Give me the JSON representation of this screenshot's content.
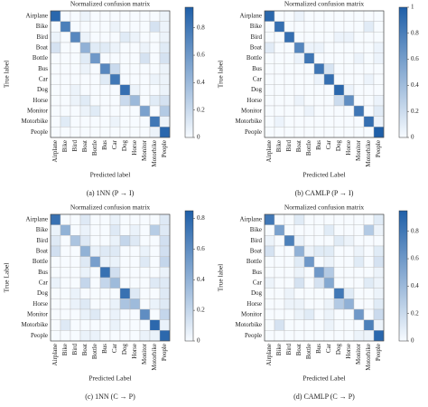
{
  "chart_data": [
    {
      "type": "heatmap",
      "title": "Normalized confusion matrix",
      "caption": "(a)  1NN (P → I)",
      "xlabel": "Predicted label",
      "ylabel": "True label",
      "categories": [
        "Airplane",
        "Bike",
        "Bird",
        "Boat",
        "Bottle",
        "Bus",
        "Car",
        "Dog",
        "Horse",
        "Monitor",
        "Motorbike",
        "People"
      ],
      "cmap": [
        "#f7fbff",
        "#1f5fa8"
      ],
      "ylim": [
        0,
        0.95
      ],
      "yticks": [
        0,
        0.2,
        0.4,
        0.6,
        0.8
      ],
      "z": [
        [
          0.9,
          0,
          0,
          0.05,
          0,
          0,
          0,
          0,
          0,
          0,
          0,
          0.05
        ],
        [
          0,
          0.75,
          0,
          0,
          0,
          0,
          0.05,
          0,
          0,
          0,
          0.15,
          0.05
        ],
        [
          0.05,
          0,
          0.7,
          0.05,
          0,
          0,
          0,
          0.1,
          0.05,
          0,
          0,
          0.05
        ],
        [
          0.15,
          0,
          0,
          0.45,
          0.1,
          0.1,
          0.05,
          0,
          0,
          0.05,
          0,
          0.1
        ],
        [
          0,
          0,
          0,
          0.1,
          0.6,
          0,
          0,
          0,
          0,
          0.15,
          0,
          0.15
        ],
        [
          0,
          0,
          0,
          0.05,
          0,
          0.7,
          0.2,
          0,
          0,
          0,
          0,
          0.05
        ],
        [
          0,
          0,
          0,
          0,
          0,
          0.1,
          0.8,
          0,
          0,
          0,
          0.05,
          0.05
        ],
        [
          0,
          0,
          0.05,
          0,
          0,
          0,
          0,
          0.85,
          0.05,
          0,
          0,
          0.05
        ],
        [
          0,
          0,
          0.05,
          0.1,
          0,
          0,
          0,
          0.2,
          0.4,
          0,
          0.1,
          0.15
        ],
        [
          0,
          0,
          0,
          0.05,
          0.1,
          0,
          0,
          0,
          0,
          0.55,
          0,
          0.3
        ],
        [
          0,
          0.1,
          0,
          0,
          0,
          0,
          0.05,
          0,
          0,
          0,
          0.8,
          0.05
        ],
        [
          0,
          0,
          0,
          0,
          0,
          0,
          0,
          0,
          0,
          0,
          0.05,
          0.9
        ]
      ]
    },
    {
      "type": "heatmap",
      "title": "Normalized confusion matrix",
      "caption": "(b)  CAMLP (P → I)",
      "xlabel": "Predicted Label",
      "ylabel": "True label",
      "categories": [
        "Airplane",
        "Bike",
        "Bird",
        "Boat",
        "Bottle",
        "Bus",
        "Car",
        "Dog",
        "Horse",
        "Monitor",
        "Motorbike",
        "People"
      ],
      "cmap": [
        "#f7fbff",
        "#1f5fa8"
      ],
      "ylim": [
        0,
        1
      ],
      "yticks": [
        0,
        0.2,
        0.4,
        0.6,
        0.8,
        1
      ],
      "z": [
        [
          0.95,
          0,
          0,
          0.05,
          0,
          0,
          0,
          0,
          0,
          0,
          0,
          0
        ],
        [
          0,
          0.9,
          0,
          0,
          0,
          0,
          0,
          0,
          0,
          0,
          0.1,
          0
        ],
        [
          0,
          0,
          0.9,
          0,
          0,
          0,
          0,
          0.05,
          0.05,
          0,
          0,
          0
        ],
        [
          0.1,
          0,
          0,
          0.75,
          0.05,
          0.05,
          0,
          0,
          0,
          0,
          0,
          0.05
        ],
        [
          0,
          0,
          0,
          0.05,
          0.85,
          0,
          0,
          0,
          0,
          0.05,
          0,
          0.05
        ],
        [
          0,
          0,
          0,
          0,
          0,
          0.85,
          0.15,
          0,
          0,
          0,
          0,
          0
        ],
        [
          0,
          0,
          0,
          0,
          0,
          0.05,
          0.9,
          0,
          0,
          0,
          0.05,
          0
        ],
        [
          0,
          0,
          0,
          0,
          0,
          0,
          0,
          0.95,
          0.05,
          0,
          0,
          0
        ],
        [
          0,
          0,
          0,
          0.05,
          0,
          0,
          0,
          0.2,
          0.7,
          0,
          0,
          0.05
        ],
        [
          0,
          0,
          0,
          0,
          0.05,
          0,
          0,
          0,
          0,
          0.85,
          0,
          0.1
        ],
        [
          0,
          0.05,
          0,
          0,
          0,
          0,
          0,
          0,
          0,
          0,
          0.9,
          0.05
        ],
        [
          0,
          0,
          0,
          0,
          0,
          0,
          0,
          0,
          0,
          0,
          0,
          1
        ]
      ]
    },
    {
      "type": "heatmap",
      "title": "Normalized confusion matrix",
      "caption": "(c)  1NN (C → P)",
      "xlabel": "Predicted Label",
      "ylabel": "True Label",
      "categories": [
        "Airplane",
        "Bike",
        "Bird",
        "Boat",
        "Bottle",
        "Bus",
        "Car",
        "Dog",
        "Horse",
        "Monitor",
        "Motorbike",
        "People"
      ],
      "cmap": [
        "#f7fbff",
        "#1f5fa8"
      ],
      "ylim": [
        0,
        0.85
      ],
      "yticks": [
        0,
        0.2,
        0.4,
        0.6,
        0.8
      ],
      "z": [
        [
          0.75,
          0,
          0,
          0.1,
          0,
          0,
          0.05,
          0,
          0,
          0,
          0,
          0.1
        ],
        [
          0.05,
          0.4,
          0,
          0.05,
          0,
          0,
          0.1,
          0,
          0.05,
          0,
          0.25,
          0.1
        ],
        [
          0.1,
          0,
          0.3,
          0.1,
          0,
          0,
          0.05,
          0.2,
          0.1,
          0,
          0,
          0.15
        ],
        [
          0.15,
          0,
          0,
          0.4,
          0.05,
          0.1,
          0.1,
          0,
          0,
          0.05,
          0,
          0.15
        ],
        [
          0,
          0,
          0,
          0.1,
          0.5,
          0.05,
          0.05,
          0,
          0,
          0.1,
          0,
          0.2
        ],
        [
          0,
          0,
          0,
          0.05,
          0,
          0.75,
          0.15,
          0,
          0,
          0,
          0,
          0.05
        ],
        [
          0.05,
          0,
          0,
          0.2,
          0,
          0.2,
          0.35,
          0,
          0,
          0,
          0.1,
          0.1
        ],
        [
          0,
          0,
          0.05,
          0,
          0,
          0,
          0,
          0.75,
          0.1,
          0,
          0,
          0.1
        ],
        [
          0,
          0,
          0.05,
          0.1,
          0,
          0,
          0.05,
          0.3,
          0.35,
          0,
          0.05,
          0.1
        ],
        [
          0,
          0,
          0,
          0.05,
          0.1,
          0,
          0.05,
          0,
          0,
          0.6,
          0,
          0.2
        ],
        [
          0,
          0.1,
          0,
          0,
          0,
          0,
          0.05,
          0,
          0,
          0,
          0.8,
          0.05
        ],
        [
          0,
          0,
          0,
          0.05,
          0.05,
          0,
          0,
          0,
          0,
          0.05,
          0.05,
          0.8
        ]
      ]
    },
    {
      "type": "heatmap",
      "title": "Normalized confusion matrix",
      "caption": "(d)  CAMLP (C → P)",
      "xlabel": "Predicted Label",
      "ylabel": "True label",
      "categories": [
        "Airplane",
        "Bike",
        "Bird",
        "Boat",
        "Bottle",
        "Bus",
        "Car",
        "Dog",
        "Horse",
        "Monitor",
        "Motorbike",
        "People"
      ],
      "cmap": [
        "#f7fbff",
        "#1f5fa8"
      ],
      "ylim": [
        0,
        0.95
      ],
      "yticks": [
        0,
        0.2,
        0.4,
        0.6,
        0.8
      ],
      "z": [
        [
          0.8,
          0,
          0,
          0.1,
          0,
          0,
          0,
          0,
          0,
          0,
          0,
          0.1
        ],
        [
          0,
          0.55,
          0,
          0,
          0,
          0,
          0.1,
          0,
          0,
          0,
          0.3,
          0.05
        ],
        [
          0.05,
          0,
          0.75,
          0.05,
          0,
          0,
          0,
          0.1,
          0.05,
          0,
          0,
          0
        ],
        [
          0.15,
          0,
          0,
          0.45,
          0.05,
          0.1,
          0.1,
          0,
          0,
          0.05,
          0,
          0.1
        ],
        [
          0,
          0,
          0,
          0.1,
          0.6,
          0,
          0.05,
          0,
          0,
          0.1,
          0,
          0.15
        ],
        [
          0,
          0,
          0,
          0.05,
          0,
          0.6,
          0.3,
          0,
          0,
          0,
          0,
          0.05
        ],
        [
          0.05,
          0,
          0,
          0.15,
          0,
          0.15,
          0.5,
          0,
          0,
          0,
          0.1,
          0.05
        ],
        [
          0,
          0,
          0.05,
          0,
          0,
          0,
          0,
          0.8,
          0.1,
          0,
          0,
          0.05
        ],
        [
          0,
          0,
          0.05,
          0.05,
          0,
          0,
          0.05,
          0.3,
          0.45,
          0,
          0,
          0.1
        ],
        [
          0,
          0,
          0,
          0.05,
          0.1,
          0,
          0.05,
          0,
          0,
          0.6,
          0,
          0.2
        ],
        [
          0,
          0.15,
          0,
          0,
          0,
          0,
          0.05,
          0,
          0,
          0,
          0.75,
          0.05
        ],
        [
          0,
          0,
          0,
          0,
          0,
          0,
          0,
          0,
          0,
          0.05,
          0.05,
          0.9
        ]
      ]
    }
  ]
}
